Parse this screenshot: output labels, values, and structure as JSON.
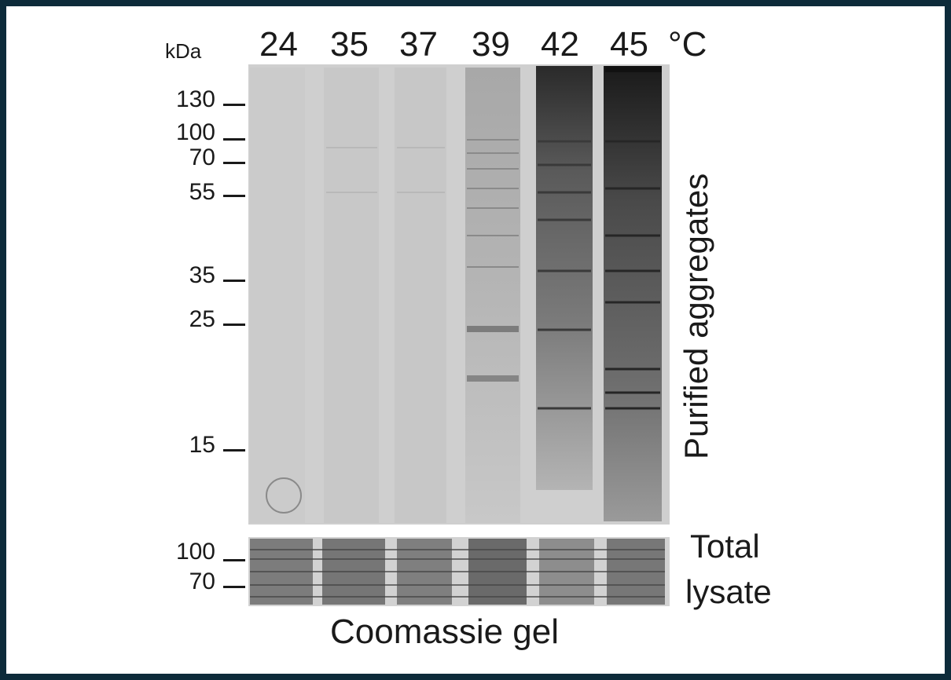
{
  "units": {
    "mass": "kDa",
    "temperature": "°C"
  },
  "lanes": [
    {
      "temp": "24"
    },
    {
      "temp": "35"
    },
    {
      "temp": "37"
    },
    {
      "temp": "39"
    },
    {
      "temp": "42"
    },
    {
      "temp": "45"
    }
  ],
  "markers_top": [
    "130",
    "100",
    "70",
    "55",
    "35",
    "25",
    "15"
  ],
  "markers_bottom": [
    "100",
    "70"
  ],
  "labels": {
    "purified": "Purified aggregates",
    "total_line1": "Total",
    "total_line2": "lysate",
    "caption": "Coomassie gel"
  }
}
